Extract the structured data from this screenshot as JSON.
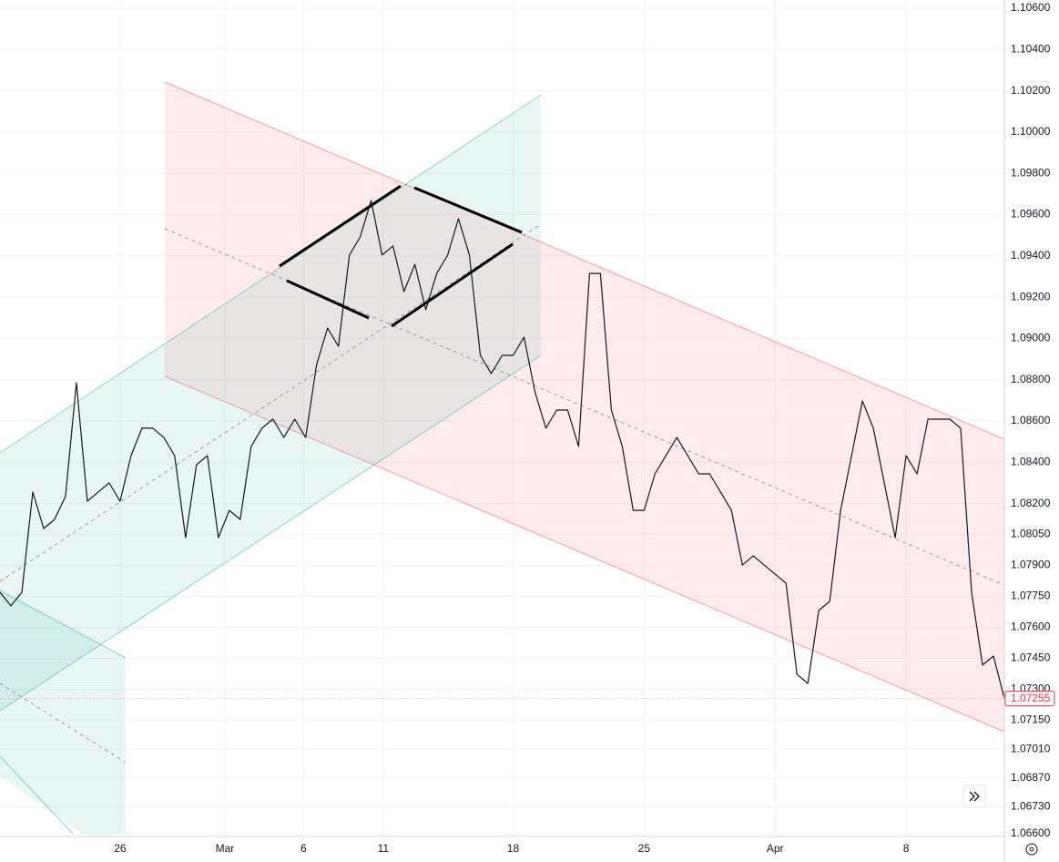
{
  "chart_data": {
    "type": "line",
    "values": [
      1.0777,
      1.07704,
      1.0777,
      1.08256,
      1.08079,
      1.08123,
      1.08234,
      1.08785,
      1.08211,
      1.08256,
      1.083,
      1.08211,
      1.08432,
      1.08565,
      1.08565,
      1.0852,
      1.08432,
      1.08035,
      1.08388,
      1.08432,
      1.08035,
      1.08167,
      1.08123,
      1.08476,
      1.08565,
      1.08609,
      1.0852,
      1.08609,
      1.0852,
      1.08874,
      1.0905,
      1.08962,
      1.09404,
      1.09492,
      1.09668,
      1.09404,
      1.09448,
      1.09227,
      1.09359,
      1.09139,
      1.09315,
      1.09404,
      1.0958,
      1.09404,
      1.08918,
      1.0883,
      1.08918,
      1.08918,
      1.09006,
      1.08741,
      1.08565,
      1.08653,
      1.08653,
      1.08476,
      1.09315,
      1.09315,
      1.08653,
      1.08476,
      1.08167,
      1.08167,
      1.08344,
      1.08432,
      1.0852,
      1.08432,
      1.08344,
      1.08344,
      1.08256,
      1.08167,
      1.07902,
      1.07947,
      1.07902,
      1.07858,
      1.07814,
      1.07373,
      1.07328,
      1.07682,
      1.07726,
      1.08167,
      1.08432,
      1.08697,
      1.08565,
      1.083,
      1.08035,
      1.08432,
      1.08344,
      1.08609,
      1.08609,
      1.08609,
      1.08565,
      1.0777,
      1.07417,
      1.07461,
      1.07255
    ],
    "color": "#131722",
    "xlim": [
      0,
      92
    ],
    "xticks": [
      {
        "value": 11,
        "label": "26"
      },
      {
        "value": 20.6,
        "label": "Mar"
      },
      {
        "value": 27.8,
        "label": "6"
      },
      {
        "value": 35.1,
        "label": "11"
      },
      {
        "value": 47,
        "label": "18"
      },
      {
        "value": 59,
        "label": "25"
      },
      {
        "value": 71,
        "label": "Apr"
      },
      {
        "value": 83,
        "label": "8"
      }
    ],
    "ylim": [
      1.066,
      1.106
    ],
    "yticks": [
      {
        "value": 1.106,
        "label": "1.10600"
      },
      {
        "value": 1.104,
        "label": "1.10400"
      },
      {
        "value": 1.102,
        "label": "1.10200"
      },
      {
        "value": 1.1,
        "label": "1.10000"
      },
      {
        "value": 1.098,
        "label": "1.09800"
      },
      {
        "value": 1.096,
        "label": "1.09600"
      },
      {
        "value": 1.094,
        "label": "1.09400"
      },
      {
        "value": 1.092,
        "label": "1.09200"
      },
      {
        "value": 1.09,
        "label": "1.09000"
      },
      {
        "value": 1.088,
        "label": "1.08800"
      },
      {
        "value": 1.086,
        "label": "1.08600"
      },
      {
        "value": 1.084,
        "label": "1.08400"
      },
      {
        "value": 1.082,
        "label": "1.08200"
      },
      {
        "value": 1.0805,
        "label": "1.08050"
      },
      {
        "value": 1.079,
        "label": "1.07900"
      },
      {
        "value": 1.0775,
        "label": "1.07750"
      },
      {
        "value": 1.076,
        "label": "1.07600"
      },
      {
        "value": 1.0745,
        "label": "1.07450"
      },
      {
        "value": 1.073,
        "label": "1.07300"
      },
      {
        "value": 1.0715,
        "label": "1.07150"
      },
      {
        "value": 1.0701,
        "label": "1.07010"
      },
      {
        "value": 1.0687,
        "label": "1.06870"
      },
      {
        "value": 1.0673,
        "label": "1.06730"
      },
      {
        "value": 1.066,
        "label": "1.06600"
      }
    ],
    "last_price": {
      "value": 1.07255,
      "label": "1.07255"
    },
    "grid": true
  }
}
